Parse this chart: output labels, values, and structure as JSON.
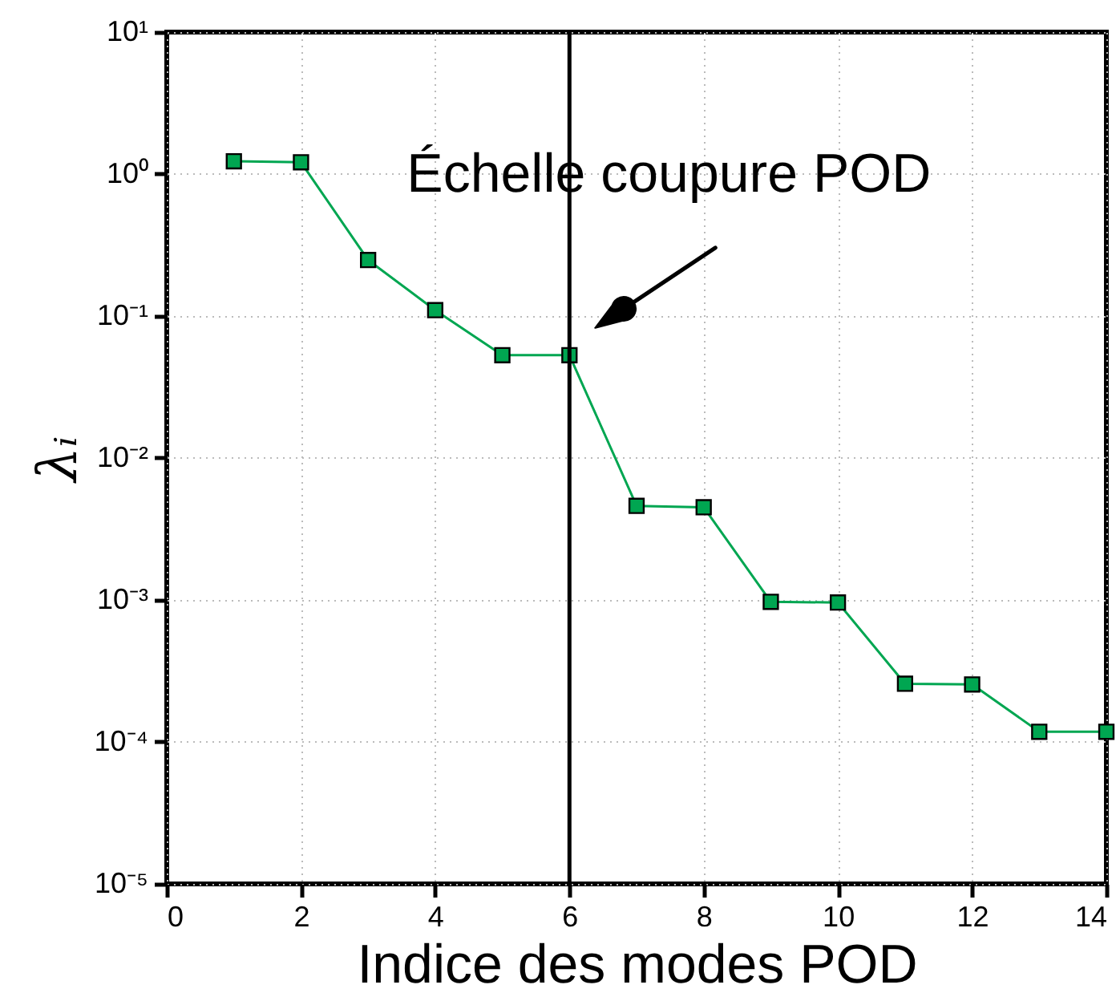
{
  "chart_data": {
    "type": "line",
    "xlabel": "Indice des modes POD",
    "ylabel": "λᵢ",
    "x": [
      1,
      2,
      3,
      4,
      5,
      6,
      7,
      8,
      9,
      10,
      11,
      12,
      13,
      14
    ],
    "series": [
      {
        "color": "#00a651",
        "values": [
          1.23,
          1.21,
          0.248,
          0.11,
          0.053,
          0.053,
          0.0046,
          0.0045,
          0.00097,
          0.00096,
          0.000257,
          0.000254,
          0.000118,
          0.000118
        ]
      }
    ],
    "log": true,
    "marker": "square",
    "line_style": "solid",
    "grid": true,
    "xlim": [
      0,
      14
    ],
    "xticks": [
      0,
      2,
      4,
      6,
      8,
      10,
      12,
      14
    ],
    "ylim": [
      1e-05,
      10
    ],
    "yticks": [
      {
        "value": 1e-05,
        "label": "10⁻⁵"
      },
      {
        "value": 0.0001,
        "label": "10⁻⁴"
      },
      {
        "value": 0.001,
        "label": "10⁻³"
      },
      {
        "value": 0.01,
        "label": "10⁻²"
      },
      {
        "value": 0.1,
        "label": "10⁻¹"
      },
      {
        "value": 1,
        "label": "10⁰"
      },
      {
        "value": 10,
        "label": "10¹"
      }
    ],
    "ref_lines": [
      {
        "axis": "x",
        "value": 6,
        "color": "#000000"
      }
    ],
    "annotations": [
      {
        "text": "Échelle coupure POD",
        "x": 6,
        "y": 0.053
      }
    ]
  }
}
